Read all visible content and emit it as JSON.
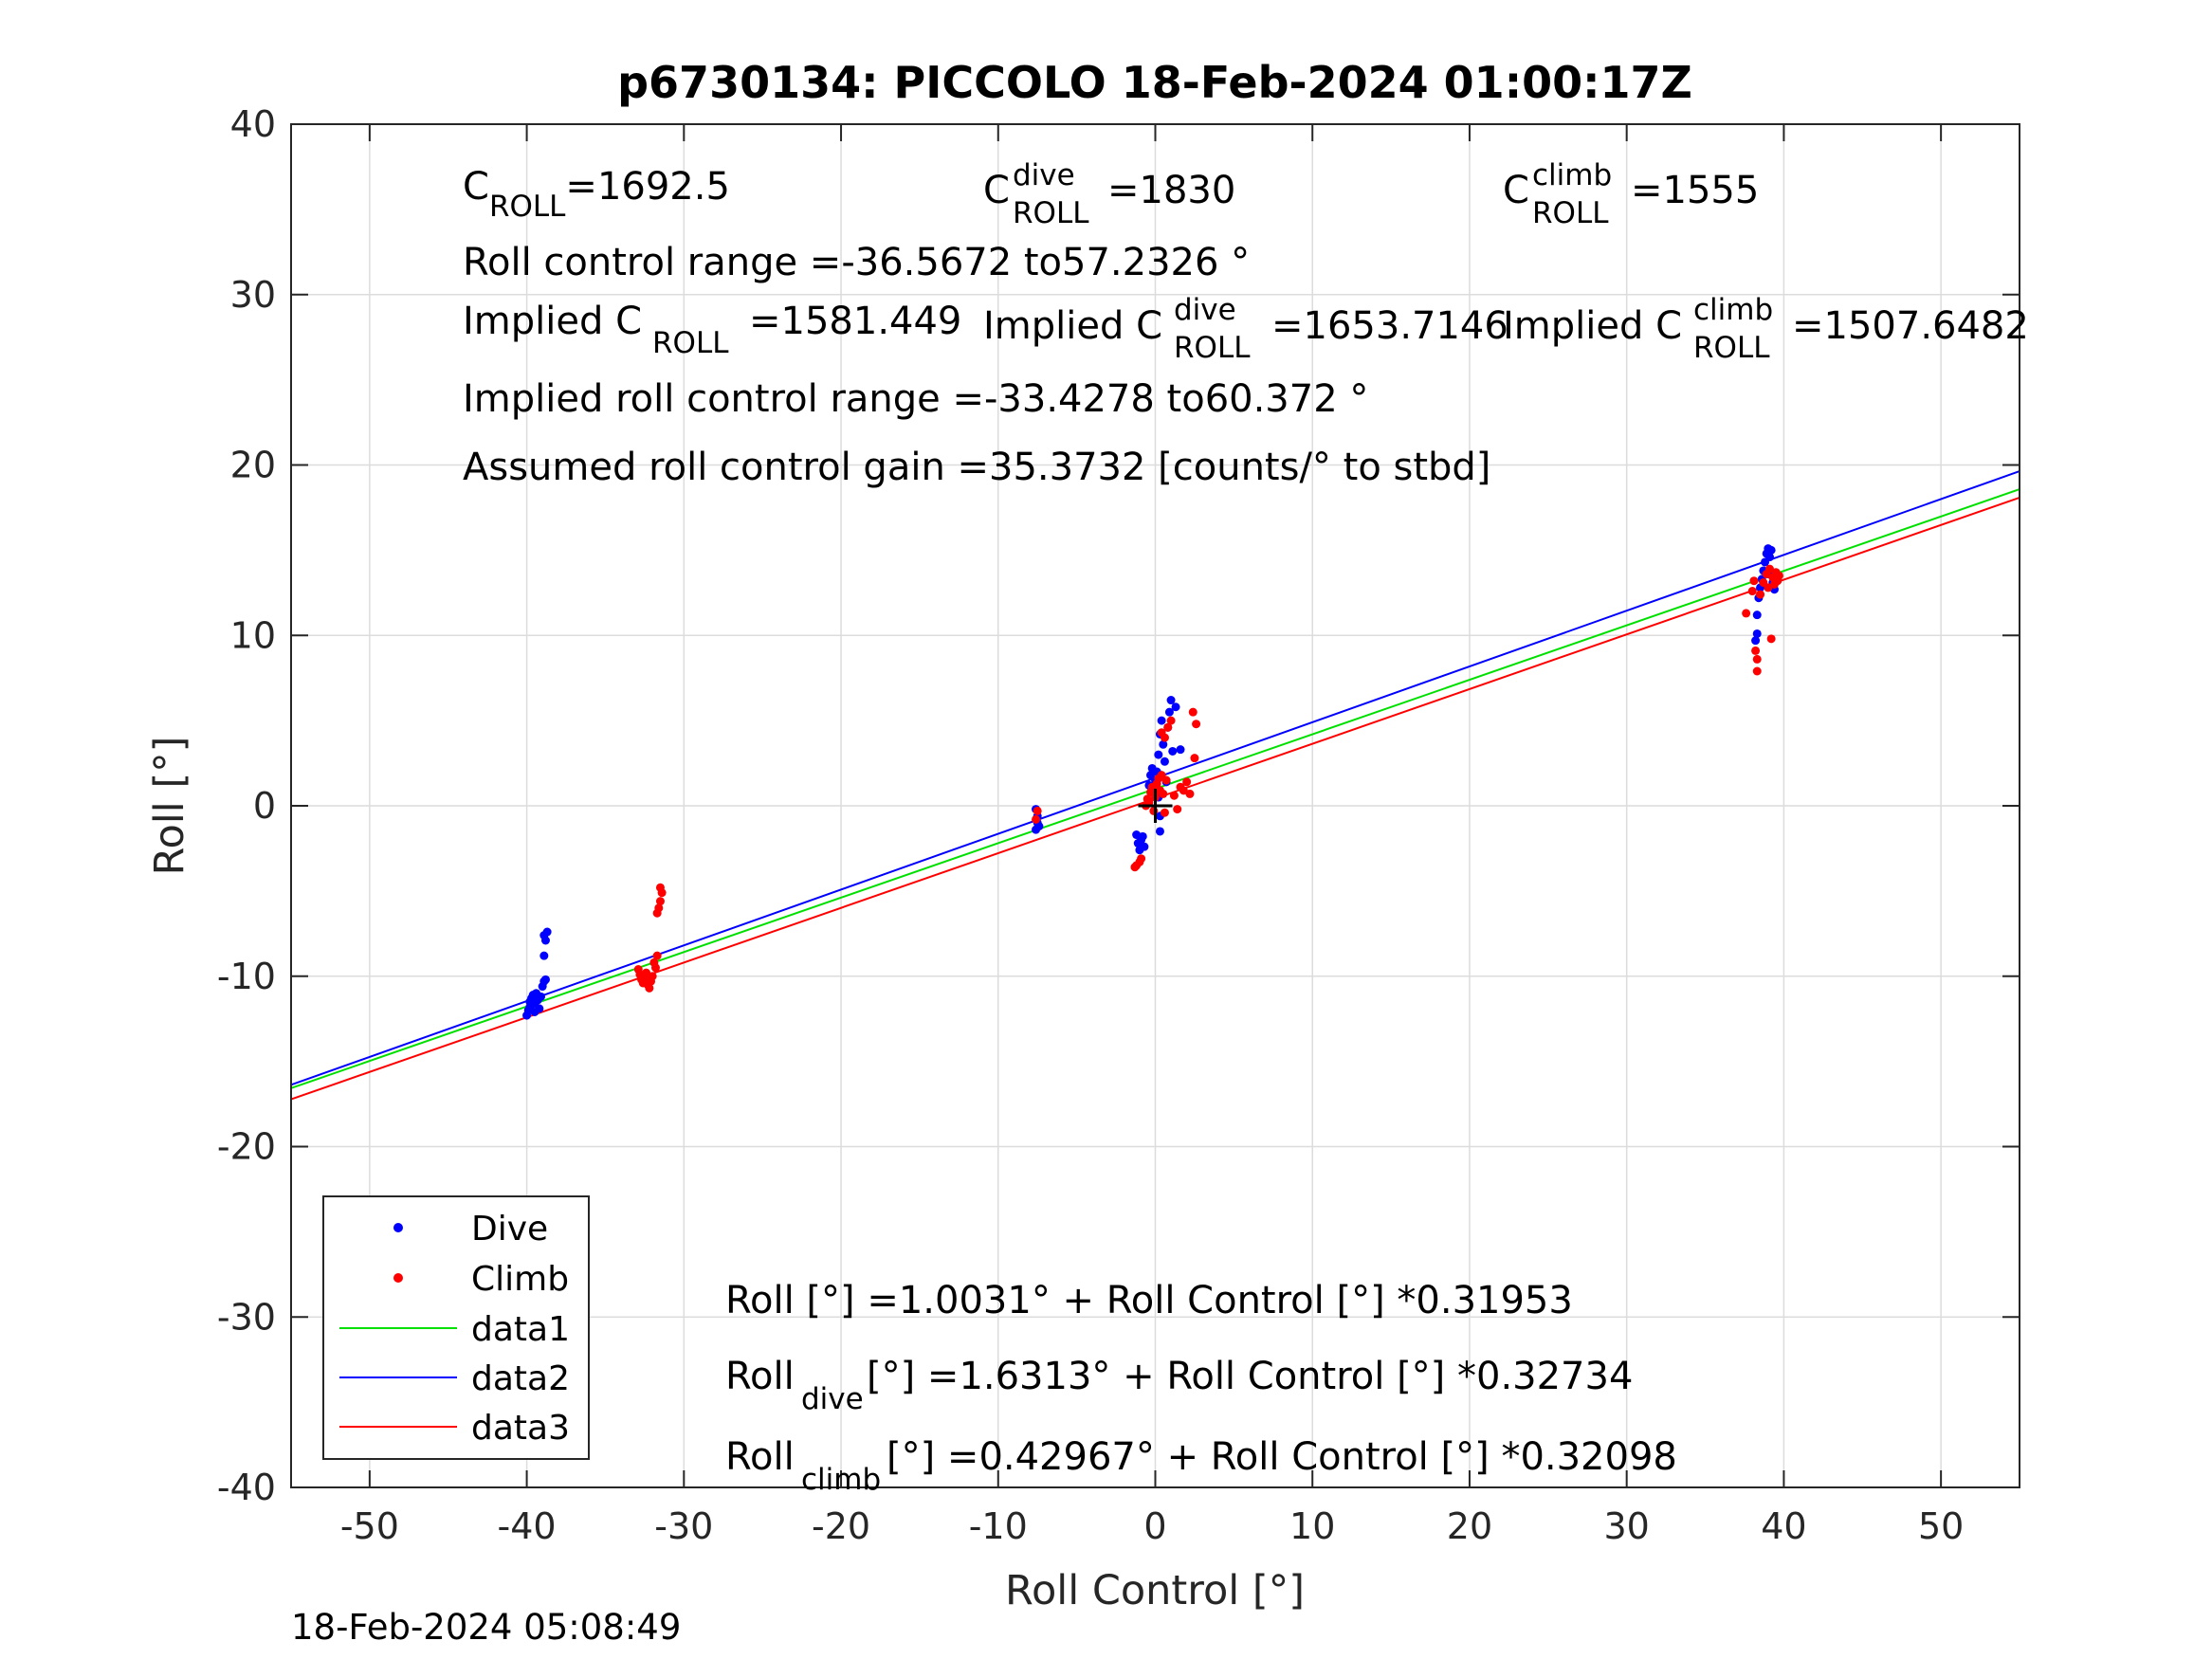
{
  "chart_data": {
    "type": "scatter",
    "title": "p6730134: PICCOLO 18-Feb-2024 01:00:17Z",
    "xlabel": "Roll Control [°]",
    "ylabel": "Roll [°]",
    "xlim": [
      -55,
      55
    ],
    "ylim": [
      -40,
      40
    ],
    "xticks": [
      -50,
      -40,
      -30,
      -20,
      -10,
      0,
      10,
      20,
      30,
      40,
      50
    ],
    "yticks": [
      -40,
      -30,
      -20,
      -10,
      0,
      10,
      20,
      30,
      40
    ],
    "xtick_labels": [
      "-50",
      "-40",
      "-30",
      "-20",
      "-10",
      "0",
      "10",
      "20",
      "30",
      "40",
      "50"
    ],
    "ytick_labels": [
      "-40",
      "-30",
      "-20",
      "-10",
      "0",
      "10",
      "20",
      "30",
      "40"
    ],
    "grid": true,
    "legend_position": "bottom-left",
    "legend": [
      {
        "label": "Dive",
        "type": "point",
        "color": "#0000ff"
      },
      {
        "label": "Climb",
        "type": "point",
        "color": "#ff0000"
      },
      {
        "label": "data1",
        "type": "line",
        "color": "#00e000"
      },
      {
        "label": "data2",
        "type": "line",
        "color": "#0000ff"
      },
      {
        "label": "data3",
        "type": "line",
        "color": "#ff0000"
      }
    ],
    "lines": [
      {
        "name": "data1",
        "color": "#00e000",
        "intercept": 1.0031,
        "slope": 0.31953
      },
      {
        "name": "data2",
        "color": "#0000ff",
        "intercept": 1.6313,
        "slope": 0.32734
      },
      {
        "name": "data3",
        "color": "#ff0000",
        "intercept": 0.42967,
        "slope": 0.32098
      }
    ],
    "series": [
      {
        "name": "Dive",
        "color": "#0000ff",
        "points": [
          [
            -40.0,
            -12.3
          ],
          [
            -39.9,
            -12.0
          ],
          [
            -39.8,
            -11.8
          ],
          [
            -39.8,
            -11.5
          ],
          [
            -39.7,
            -11.3
          ],
          [
            -39.6,
            -11.1
          ],
          [
            -39.5,
            -11.6
          ],
          [
            -39.5,
            -12.1
          ],
          [
            -39.4,
            -11.0
          ],
          [
            -39.3,
            -11.4
          ],
          [
            -39.2,
            -11.9
          ],
          [
            -39.1,
            -11.2
          ],
          [
            -39.0,
            -10.6
          ],
          [
            -38.9,
            -10.3
          ],
          [
            -38.8,
            -10.2
          ],
          [
            -38.9,
            -8.8
          ],
          [
            -38.8,
            -7.9
          ],
          [
            -38.9,
            -7.6
          ],
          [
            -38.7,
            -7.4
          ],
          [
            -7.6,
            -1.4
          ],
          [
            -7.5,
            -1.0
          ],
          [
            -7.5,
            -0.6
          ],
          [
            -7.6,
            -0.2
          ],
          [
            -7.4,
            -1.2
          ],
          [
            -1.2,
            -1.7
          ],
          [
            -1.1,
            -2.2
          ],
          [
            -1.0,
            -2.6
          ],
          [
            -0.9,
            -2.0
          ],
          [
            -0.8,
            -1.8
          ],
          [
            -0.7,
            -2.4
          ],
          [
            -0.4,
            1.2
          ],
          [
            -0.3,
            1.8
          ],
          [
            -0.2,
            2.2
          ],
          [
            -0.1,
            0.8
          ],
          [
            0.0,
            1.5
          ],
          [
            0.1,
            2.0
          ],
          [
            0.2,
            0.5
          ],
          [
            0.3,
            -0.6
          ],
          [
            0.3,
            -1.5
          ],
          [
            0.2,
            3.0
          ],
          [
            0.3,
            4.2
          ],
          [
            0.4,
            5.0
          ],
          [
            0.5,
            3.6
          ],
          [
            0.6,
            2.6
          ],
          [
            0.7,
            1.4
          ],
          [
            0.8,
            4.6
          ],
          [
            0.9,
            5.5
          ],
          [
            1.0,
            6.2
          ],
          [
            1.1,
            3.2
          ],
          [
            1.3,
            5.8
          ],
          [
            1.6,
            3.3
          ],
          [
            38.2,
            9.7
          ],
          [
            38.3,
            10.1
          ],
          [
            38.3,
            11.2
          ],
          [
            38.4,
            12.2
          ],
          [
            38.5,
            12.8
          ],
          [
            38.6,
            13.3
          ],
          [
            38.7,
            13.8
          ],
          [
            38.8,
            14.3
          ],
          [
            38.9,
            14.8
          ],
          [
            39.0,
            15.1
          ],
          [
            39.0,
            13.6
          ],
          [
            39.1,
            14.6
          ],
          [
            39.2,
            15.0
          ],
          [
            39.3,
            13.1
          ],
          [
            39.4,
            12.7
          ]
        ]
      },
      {
        "name": "Climb",
        "color": "#ff0000",
        "points": [
          [
            -32.9,
            -9.6
          ],
          [
            -32.8,
            -9.9
          ],
          [
            -32.7,
            -10.2
          ],
          [
            -32.6,
            -10.4
          ],
          [
            -32.5,
            -10.1
          ],
          [
            -32.4,
            -9.8
          ],
          [
            -32.3,
            -10.5
          ],
          [
            -32.2,
            -10.7
          ],
          [
            -32.1,
            -10.3
          ],
          [
            -32.0,
            -10.0
          ],
          [
            -31.9,
            -9.2
          ],
          [
            -31.8,
            -9.5
          ],
          [
            -31.7,
            -8.8
          ],
          [
            -31.7,
            -6.3
          ],
          [
            -31.6,
            -6.0
          ],
          [
            -31.5,
            -5.6
          ],
          [
            -31.5,
            -4.8
          ],
          [
            -31.4,
            -5.1
          ],
          [
            -7.6,
            -0.8
          ],
          [
            -7.5,
            -0.3
          ],
          [
            -1.3,
            -3.6
          ],
          [
            -1.2,
            -3.5
          ],
          [
            -1.0,
            -3.3
          ],
          [
            -0.9,
            -3.1
          ],
          [
            -0.6,
            0.0
          ],
          [
            -0.5,
            0.4
          ],
          [
            -0.4,
            0.2
          ],
          [
            -0.3,
            0.8
          ],
          [
            -0.2,
            1.1
          ],
          [
            -0.1,
            -0.3
          ],
          [
            0.0,
            0.5
          ],
          [
            0.1,
            1.3
          ],
          [
            0.2,
            1.6
          ],
          [
            0.3,
            0.9
          ],
          [
            0.4,
            1.8
          ],
          [
            0.5,
            0.7
          ],
          [
            0.6,
            -0.4
          ],
          [
            0.7,
            1.5
          ],
          [
            0.4,
            4.3
          ],
          [
            0.6,
            4.0
          ],
          [
            0.8,
            4.6
          ],
          [
            1.0,
            5.0
          ],
          [
            1.2,
            0.6
          ],
          [
            1.4,
            -0.2
          ],
          [
            1.6,
            1.1
          ],
          [
            1.8,
            0.9
          ],
          [
            2.0,
            1.4
          ],
          [
            2.2,
            0.7
          ],
          [
            2.4,
            5.5
          ],
          [
            2.6,
            4.8
          ],
          [
            2.5,
            2.8
          ],
          [
            37.6,
            11.3
          ],
          [
            38.0,
            12.6
          ],
          [
            38.1,
            13.2
          ],
          [
            38.2,
            9.1
          ],
          [
            38.3,
            8.6
          ],
          [
            38.3,
            7.9
          ],
          [
            38.5,
            12.4
          ],
          [
            38.7,
            13.1
          ],
          [
            38.9,
            13.6
          ],
          [
            39.0,
            12.8
          ],
          [
            39.1,
            13.9
          ],
          [
            39.2,
            9.8
          ],
          [
            39.3,
            13.4
          ],
          [
            39.4,
            13.0
          ],
          [
            39.5,
            13.7
          ],
          [
            39.6,
            13.2
          ],
          [
            39.7,
            13.5
          ]
        ]
      }
    ],
    "origin_marker": [
      0,
      0
    ]
  },
  "annotations": {
    "c_roll_main": "C",
    "c_roll_sub": "ROLL",
    "c_roll_val": "=1692.5",
    "c_dive_main": "C",
    "c_dive_sup": "dive",
    "c_dive_sub": "ROLL",
    "c_dive_val": "=1830",
    "c_climb_main": "C",
    "c_climb_sup": "climb",
    "c_climb_sub": "ROLL",
    "c_climb_val": "=1555",
    "roll_control_range": "Roll control range =-36.5672 to57.2326 °",
    "implied_c_roll_main": "Implied C",
    "implied_c_roll_sub": "ROLL",
    "implied_c_roll_val": "=1581.449",
    "implied_c_dive_main": "Implied C",
    "implied_c_dive_sup": "dive",
    "implied_c_dive_sub": "ROLL",
    "implied_c_dive_val": "=1653.7146",
    "implied_c_climb_main": "Implied C",
    "implied_c_climb_sup": "climb",
    "implied_c_climb_sub": "ROLL",
    "implied_c_climb_val": "=1507.6482",
    "implied_range": "Implied roll control range =-33.4278 to60.372 °",
    "assumed_gain": "Assumed roll control gain =35.3732 [counts/° to stbd]",
    "fit_all": "Roll [°] =1.0031° + Roll Control [°] *0.31953",
    "fit_dive_main": "Roll",
    "fit_dive_sub": "dive",
    "fit_dive_rest": " [°] =1.6313° + Roll Control [°] *0.32734",
    "fit_climb_main": "Roll",
    "fit_climb_sub": "climb",
    "fit_climb_rest": " [°] =0.42967° + Roll Control [°] *0.32098"
  },
  "footer": {
    "timestamp": "18-Feb-2024 05:08:49"
  }
}
